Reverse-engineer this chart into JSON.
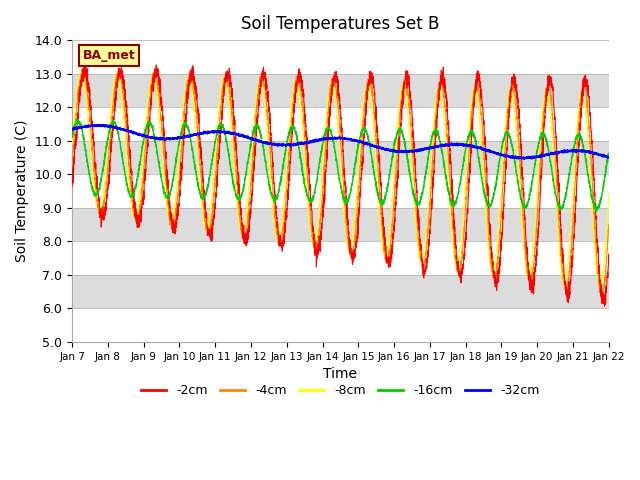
{
  "title": "Soil Temperatures Set B",
  "xlabel": "Time",
  "ylabel": "Soil Temperature (C)",
  "ylim": [
    5.0,
    14.0
  ],
  "yticks": [
    5.0,
    6.0,
    7.0,
    8.0,
    9.0,
    10.0,
    11.0,
    12.0,
    13.0,
    14.0
  ],
  "xtick_labels": [
    "Jan 7",
    "Jan 8",
    "Jan 9",
    "Jan 10",
    "Jan 11",
    "Jan 12",
    "Jan 13",
    "Jan 14",
    "Jan 15",
    "Jan 16",
    "Jan 17",
    "Jan 18",
    "Jan 19",
    "Jan 20",
    "Jan 21",
    "Jan 22"
  ],
  "legend_label": "BA_met",
  "series_labels": [
    "-2cm",
    "-4cm",
    "-8cm",
    "-16cm",
    "-32cm"
  ],
  "series_colors": [
    "#FF0000",
    "#FF8800",
    "#FFFF00",
    "#00CC00",
    "#0000FF"
  ],
  "series_linewidths": [
    0.8,
    0.8,
    0.8,
    1.0,
    1.2
  ],
  "fig_bg_color": "#FFFFFF",
  "plot_bg_color": "#E8E8E8",
  "band_colors": [
    "#FFFFFF",
    "#DCDCDC"
  ],
  "n_points": 3600,
  "days": 15
}
